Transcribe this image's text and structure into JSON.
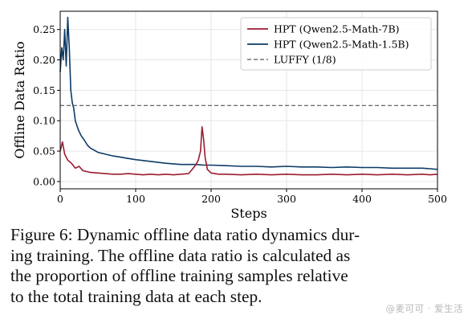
{
  "chart_data": {
    "type": "line",
    "xlabel": "Steps",
    "ylabel": "Offline Data Ratio",
    "xlim": [
      0,
      500
    ],
    "ylim": [
      -0.012,
      0.28
    ],
    "xticks": [
      0,
      100,
      200,
      300,
      400,
      500
    ],
    "yticks": [
      0.0,
      0.05,
      0.1,
      0.15,
      0.2,
      0.25
    ],
    "xtick_labels": [
      "0",
      "100",
      "200",
      "300",
      "400",
      "500"
    ],
    "ytick_labels": [
      "0.00",
      "0.05",
      "0.10",
      "0.15",
      "0.20",
      "0.25"
    ],
    "grid": true,
    "legend_position": "top-right",
    "series": [
      {
        "name": "HPT (Qwen2.5-Math-7B)",
        "color": "#9b1c31",
        "style": "solid",
        "x": [
          0,
          3,
          6,
          10,
          15,
          20,
          25,
          30,
          40,
          50,
          60,
          70,
          80,
          90,
          100,
          110,
          120,
          130,
          140,
          150,
          160,
          170,
          175,
          180,
          183,
          186,
          188,
          190,
          192,
          195,
          200,
          210,
          220,
          240,
          260,
          280,
          300,
          320,
          340,
          360,
          380,
          400,
          420,
          440,
          460,
          480,
          490,
          500
        ],
        "y": [
          0.05,
          0.065,
          0.045,
          0.035,
          0.03,
          0.022,
          0.025,
          0.018,
          0.015,
          0.014,
          0.013,
          0.012,
          0.012,
          0.013,
          0.012,
          0.011,
          0.012,
          0.011,
          0.012,
          0.011,
          0.012,
          0.013,
          0.02,
          0.028,
          0.035,
          0.05,
          0.09,
          0.07,
          0.04,
          0.02,
          0.014,
          0.012,
          0.012,
          0.011,
          0.012,
          0.011,
          0.012,
          0.011,
          0.011,
          0.012,
          0.011,
          0.012,
          0.011,
          0.012,
          0.011,
          0.012,
          0.011,
          0.012
        ]
      },
      {
        "name": "HPT (Qwen2.5-Math-1.5B)",
        "color": "#0d3b66",
        "style": "solid",
        "x": [
          0,
          2,
          4,
          6,
          8,
          10,
          12,
          14,
          16,
          18,
          20,
          24,
          28,
          32,
          36,
          40,
          50,
          60,
          70,
          80,
          90,
          100,
          120,
          140,
          160,
          180,
          190,
          200,
          220,
          240,
          260,
          280,
          300,
          320,
          340,
          360,
          380,
          400,
          420,
          440,
          460,
          480,
          490,
          500
        ],
        "y": [
          0.18,
          0.22,
          0.2,
          0.25,
          0.19,
          0.27,
          0.22,
          0.15,
          0.13,
          0.12,
          0.1,
          0.085,
          0.075,
          0.068,
          0.06,
          0.055,
          0.048,
          0.045,
          0.042,
          0.04,
          0.038,
          0.036,
          0.033,
          0.03,
          0.028,
          0.028,
          0.027,
          0.027,
          0.026,
          0.025,
          0.025,
          0.024,
          0.025,
          0.024,
          0.024,
          0.023,
          0.024,
          0.023,
          0.023,
          0.022,
          0.022,
          0.022,
          0.021,
          0.02
        ]
      },
      {
        "name": "LUFFY (1/8)",
        "color": "#555555",
        "style": "dashed",
        "x": [
          0,
          500
        ],
        "y": [
          0.125,
          0.125
        ]
      }
    ]
  },
  "caption": {
    "lines": [
      "Figure 6: Dynamic offline data ratio dynamics dur-",
      "ing training. The offline data ratio is calculated as",
      "the proportion of offline training samples relative",
      "to the total training data at each step."
    ]
  },
  "watermark": "@麦可可 · 爱生活"
}
